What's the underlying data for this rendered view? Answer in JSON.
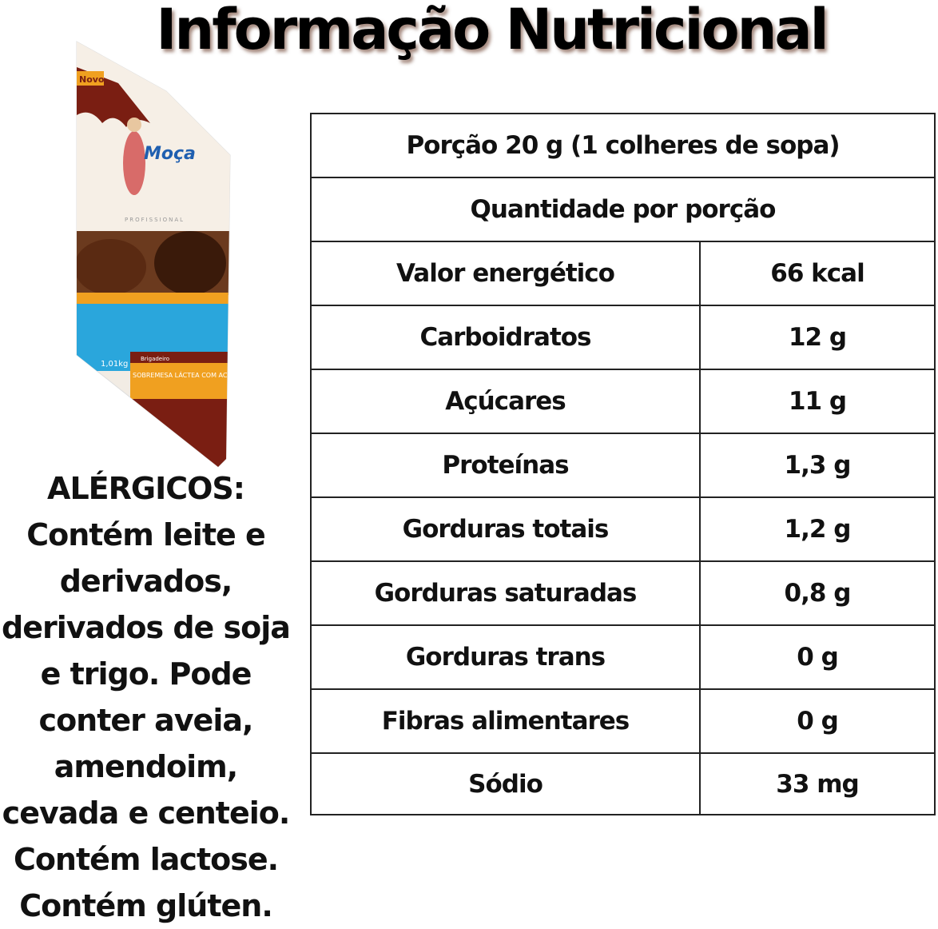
{
  "title": "Informação Nutricional",
  "product": {
    "badge": "Novo",
    "brand": "Moça",
    "line": "PROFISSIONAL",
    "flavor": "Brigadeiro",
    "description": "SOBREMESA LÁCTEA COM ACHOCOLATADO",
    "weight": "1,01kg",
    "colors": {
      "brown": "#7a1e12",
      "orange": "#f0a020",
      "blue": "#2aa6dc",
      "cream": "#f6efe6"
    }
  },
  "allergens": {
    "heading": "ALÉRGICOS:",
    "text": "Contém leite e derivados, derivados de soja e trigo. Pode conter aveia, amendoim, cevada e centeio. Contém lactose. Contém glúten."
  },
  "table": {
    "portion": "Porção 20 g (1 colheres de sopa)",
    "per_portion": "Quantidade por porção",
    "rows": [
      {
        "label": "Valor energético",
        "value": "66 kcal"
      },
      {
        "label": "Carboidratos",
        "value": "12 g"
      },
      {
        "label": "Açúcares",
        "value": "11 g"
      },
      {
        "label": "Proteínas",
        "value": "1,3 g"
      },
      {
        "label": "Gorduras totais",
        "value": "1,2 g"
      },
      {
        "label": "Gorduras saturadas",
        "value": "0,8 g"
      },
      {
        "label": "Gorduras trans",
        "value": "0 g"
      },
      {
        "label": "Fibras alimentares",
        "value": "0 g"
      },
      {
        "label": "Sódio",
        "value": "33 mg"
      }
    ]
  }
}
